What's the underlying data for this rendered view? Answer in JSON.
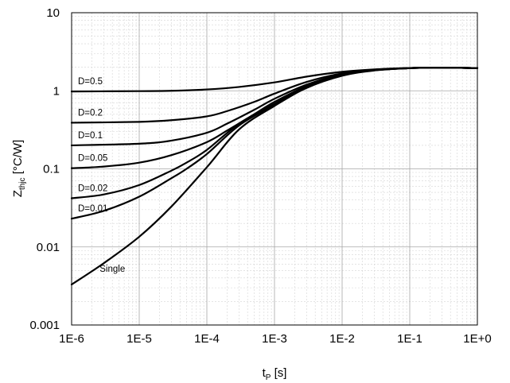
{
  "chart_data": {
    "type": "line",
    "xscale": "log",
    "yscale": "log",
    "xlim": [
      1e-06,
      1
    ],
    "ylim": [
      0.001,
      10
    ],
    "grid": true,
    "grid_minor": true,
    "x_ticks": [
      1e-06,
      1e-05,
      0.0001,
      0.001,
      0.01,
      0.1,
      1
    ],
    "x_tick_labels": [
      "1E-6",
      "1E-5",
      "1E-4",
      "1E-3",
      "1E-2",
      "1E-1",
      "1E+0"
    ],
    "y_ticks": [
      0.001,
      0.01,
      0.1,
      1,
      10
    ],
    "y_tick_labels": [
      "0.001",
      "0.01",
      "0.1",
      "1",
      "10"
    ],
    "xlabel": {
      "main": "t",
      "sub": "P",
      "rest": " [s]"
    },
    "ylabel": {
      "main": "Z",
      "sub": "thjc",
      "rest": " [°C/W]"
    },
    "line_color": "#000000",
    "series": [
      {
        "name": "D=0.5",
        "x": [
          1e-06,
          1e-05,
          3e-05,
          0.0001,
          0.0003,
          0.001,
          0.003,
          0.01,
          0.03,
          0.1,
          0.2,
          0.5,
          1
        ],
        "y": [
          0.98,
          0.99,
          1.0,
          1.04,
          1.12,
          1.28,
          1.52,
          1.75,
          1.88,
          1.96,
          1.98,
          1.97,
          1.95
        ]
      },
      {
        "name": "D=0.2",
        "x": [
          1e-06,
          1e-05,
          3e-05,
          0.0001,
          0.0002,
          0.0005,
          0.001,
          0.003,
          0.01,
          0.03,
          0.1,
          0.2,
          0.5,
          1
        ],
        "y": [
          0.39,
          0.4,
          0.42,
          0.47,
          0.55,
          0.72,
          0.92,
          1.3,
          1.67,
          1.86,
          1.96,
          1.98,
          1.97,
          1.95
        ]
      },
      {
        "name": "D=0.1",
        "x": [
          1e-06,
          1e-05,
          3e-05,
          0.0001,
          0.0002,
          0.0005,
          0.001,
          0.003,
          0.01,
          0.03,
          0.1,
          0.2,
          0.5,
          1
        ],
        "y": [
          0.2,
          0.21,
          0.23,
          0.29,
          0.38,
          0.57,
          0.79,
          1.2,
          1.63,
          1.85,
          1.95,
          1.98,
          1.97,
          1.95
        ]
      },
      {
        "name": "D=0.05",
        "x": [
          1e-06,
          3e-06,
          1e-05,
          3e-05,
          0.0001,
          0.0002,
          0.0005,
          0.001,
          0.003,
          0.01,
          0.03,
          0.1,
          0.2,
          0.5,
          1
        ],
        "y": [
          0.102,
          0.107,
          0.12,
          0.15,
          0.22,
          0.31,
          0.5,
          0.72,
          1.15,
          1.6,
          1.84,
          1.95,
          1.98,
          1.97,
          1.95
        ]
      },
      {
        "name": "D=0.02",
        "x": [
          1e-06,
          3e-06,
          1e-05,
          3e-05,
          5e-05,
          0.0001,
          0.0003,
          0.001,
          0.003,
          0.01,
          0.03,
          0.1,
          0.2,
          0.5,
          1
        ],
        "y": [
          0.042,
          0.047,
          0.062,
          0.095,
          0.12,
          0.175,
          0.38,
          0.68,
          1.12,
          1.58,
          1.83,
          1.95,
          1.98,
          1.97,
          1.95
        ]
      },
      {
        "name": "D=0.01",
        "x": [
          1e-06,
          3e-06,
          1e-05,
          3e-05,
          5e-05,
          0.0001,
          0.0003,
          0.001,
          0.003,
          0.01,
          0.03,
          0.1,
          0.2,
          0.5,
          1
        ],
        "y": [
          0.023,
          0.029,
          0.044,
          0.076,
          0.1,
          0.155,
          0.36,
          0.66,
          1.1,
          1.57,
          1.83,
          1.95,
          1.98,
          1.97,
          1.95
        ]
      },
      {
        "name": "Single",
        "x": [
          1e-06,
          3e-06,
          1e-05,
          3e-05,
          0.0001,
          0.0003,
          0.001,
          0.003,
          0.01,
          0.03,
          0.1,
          0.2,
          0.5,
          1
        ],
        "y": [
          0.0033,
          0.0062,
          0.0135,
          0.033,
          0.105,
          0.32,
          0.64,
          1.09,
          1.56,
          1.82,
          1.95,
          1.98,
          1.97,
          1.95
        ]
      }
    ]
  }
}
